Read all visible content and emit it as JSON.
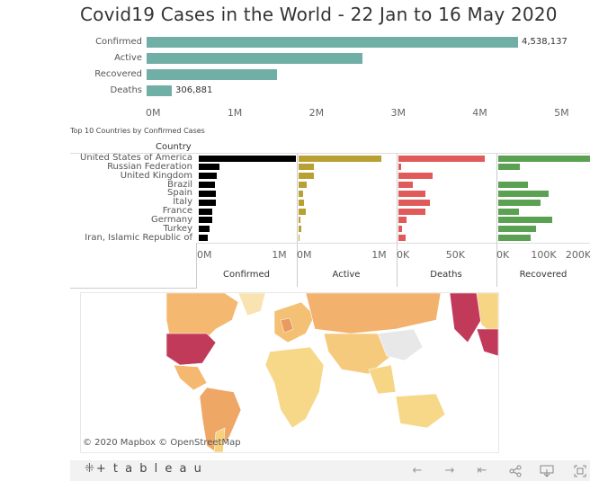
{
  "title": "Covid19 Cases in the  World - 22 Jan to 16 May 2020",
  "summary": {
    "rows": [
      {
        "label": "Confirmed",
        "value": 4538137,
        "value_label": "4,538,137",
        "color": "#6fafa6"
      },
      {
        "label": "Active",
        "value": 2640000,
        "value_label": "",
        "color": "#6fafa6"
      },
      {
        "label": "Recovered",
        "value": 1590000,
        "value_label": "",
        "color": "#6fafa6"
      },
      {
        "label": "Deaths",
        "value": 306881,
        "value_label": "306,881",
        "color": "#6fafa6"
      }
    ],
    "ticks": [
      "0M",
      "1M",
      "2M",
      "3M",
      "4M",
      "5M"
    ],
    "max": 5000000
  },
  "subtitle": "Top 10 Countries by Confirmed Cases",
  "country_header": "Country",
  "chart_data": {
    "type": "bar",
    "categories": [
      "United States of America",
      "Russian Federation",
      "United Kingdom",
      "Brazil",
      "Spain",
      "Italy",
      "France",
      "Germany",
      "Turkey",
      "Iran, Islamic Republic of"
    ],
    "series": [
      {
        "name": "Confirmed",
        "color": "#000000",
        "values": [
          1450000,
          272000,
          240000,
          218000,
          230000,
          224000,
          179000,
          175000,
          148000,
          118000
        ],
        "max": 1250000,
        "ticks": [
          "0M",
          "1M"
        ]
      },
      {
        "name": "Active",
        "color": "#b8a033",
        "values": [
          1100000,
          210000,
          210000,
          110000,
          55000,
          70000,
          92000,
          20000,
          40000,
          18000
        ],
        "max": 1250000,
        "ticks": [
          "0M",
          "1M"
        ]
      },
      {
        "name": "Deaths",
        "color": "#e05a5a",
        "values": [
          88000,
          2500,
          34500,
          15000,
          27500,
          31800,
          27600,
          7900,
          4100,
          6900
        ],
        "max": 95000,
        "ticks": [
          "0K",
          "50K"
        ]
      },
      {
        "name": "Recovered",
        "color": "#5aa151",
        "values": [
          300000,
          63000,
          0,
          85000,
          146000,
          122000,
          60000,
          155000,
          108000,
          93000
        ],
        "max": 255000,
        "ticks": [
          "0K",
          "100K",
          "200K"
        ]
      }
    ]
  },
  "map": {
    "attribution": "© 2020 Mapbox © OpenStreetMap"
  },
  "toolbar": {
    "logo": "+ t a b l e a u",
    "icons": [
      "undo-icon",
      "redo-icon",
      "revert-icon",
      "share-icon",
      "download-icon",
      "fullscreen-icon"
    ]
  }
}
